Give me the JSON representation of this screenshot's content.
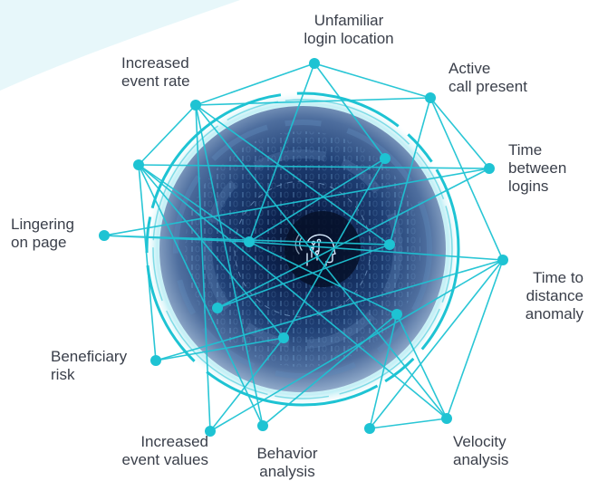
{
  "colors": {
    "accent": "#1ec3d3",
    "orb_dark": "#0b1c45",
    "orb_mid": "#2c4f86",
    "label_text": "#3a3f4a",
    "corner_tint": "#e7f7fa"
  },
  "center": {
    "icon": "ai-head-icon"
  },
  "factors": [
    {
      "id": "unfamiliar-login-location",
      "label": "Unfamiliar\nlogin location"
    },
    {
      "id": "active-call-present",
      "label": "Active\ncall present"
    },
    {
      "id": "time-between-logins",
      "label": "Time\nbetween\nlogins"
    },
    {
      "id": "time-to-distance-anomaly",
      "label": "Time to\ndistance\nanomaly"
    },
    {
      "id": "velocity-analysis",
      "label": "Velocity\nanalysis"
    },
    {
      "id": "behavior-analysis",
      "label": "Behavior\nanalysis"
    },
    {
      "id": "increased-event-values",
      "label": "Increased\nevent values"
    },
    {
      "id": "beneficiary-risk",
      "label": "Beneficiary\nrisk"
    },
    {
      "id": "lingering-on-page",
      "label": "Lingering\non page"
    },
    {
      "id": "increased-event-rate",
      "label": "Increased\nevent rate"
    }
  ]
}
